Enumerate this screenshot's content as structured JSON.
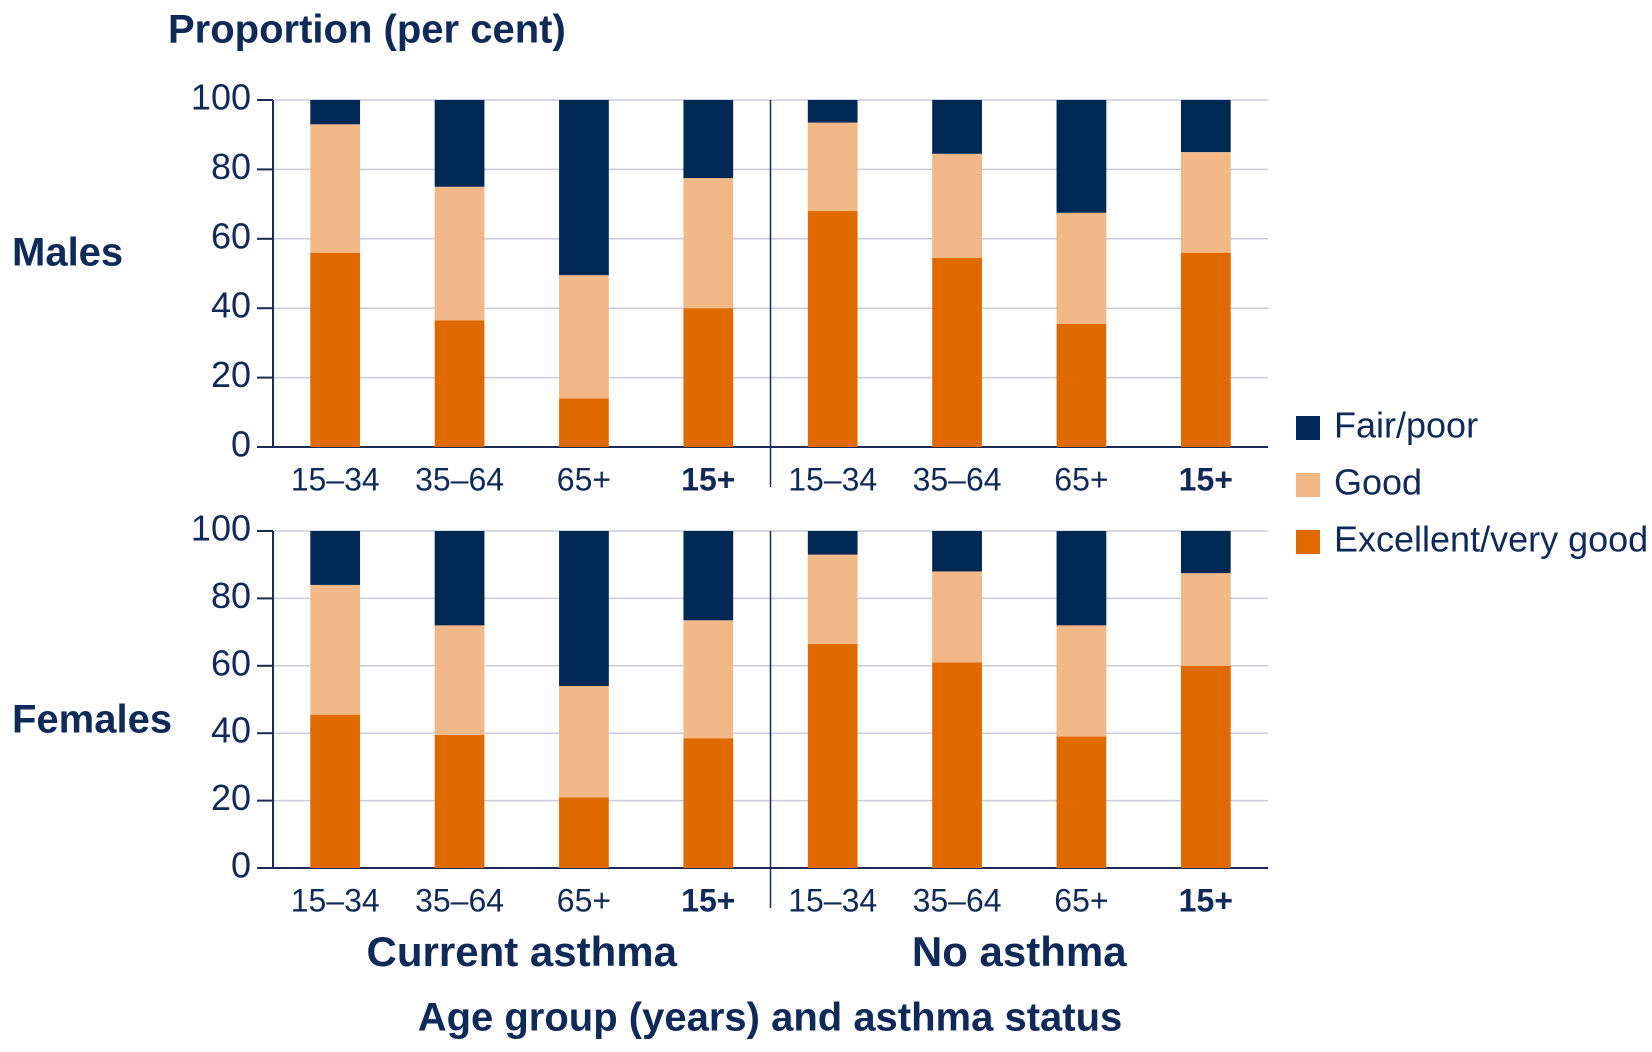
{
  "chart_data": [
    {
      "type": "bar",
      "stacked": true,
      "title": "Males",
      "y_label": "Proportion (per cent)",
      "categories": [
        "15–34",
        "35–64",
        "65+",
        "15+",
        "15–34",
        "35–64",
        "65+",
        "15+"
      ],
      "series": [
        {
          "name": "Excellent/very good",
          "color": "#e06a00",
          "values": [
            56,
            36.5,
            14,
            40,
            68,
            54.5,
            35.5,
            56
          ]
        },
        {
          "name": "Good",
          "color": "#f2b888",
          "values": [
            37,
            38.5,
            35.5,
            37.5,
            25.5,
            30,
            32,
            29
          ]
        },
        {
          "name": "Fair/poor",
          "color": "#002855",
          "values": [
            7,
            25,
            50.5,
            22.5,
            6.5,
            15.5,
            32.5,
            15
          ]
        }
      ],
      "ylim": [
        0,
        100
      ],
      "yticks": [
        0,
        20,
        40,
        60,
        80,
        100
      ],
      "grid": true
    },
    {
      "type": "bar",
      "stacked": true,
      "title": "Females",
      "x_label": "Age group (years) and asthma status",
      "groups": [
        "Current asthma",
        "No asthma"
      ],
      "categories": [
        "15–34",
        "35–64",
        "65+",
        "15+",
        "15–34",
        "35–64",
        "65+",
        "15+"
      ],
      "series": [
        {
          "color": "#e06a00",
          "values": [
            45.5,
            39.5,
            21,
            38.5,
            66.5,
            61,
            39,
            60
          ]
        },
        {
          "color": "#f2b888",
          "values": [
            38.5,
            32.5,
            33,
            35,
            26.5,
            27,
            33,
            27.5
          ]
        },
        {
          "color": "#002855",
          "values": [
            16,
            28,
            46,
            26.5,
            7,
            12,
            28,
            12.5
          ]
        }
      ],
      "ylim": [
        0,
        100
      ],
      "yticks": [
        0,
        20,
        40,
        60,
        80,
        100
      ],
      "grid": true
    }
  ]
}
